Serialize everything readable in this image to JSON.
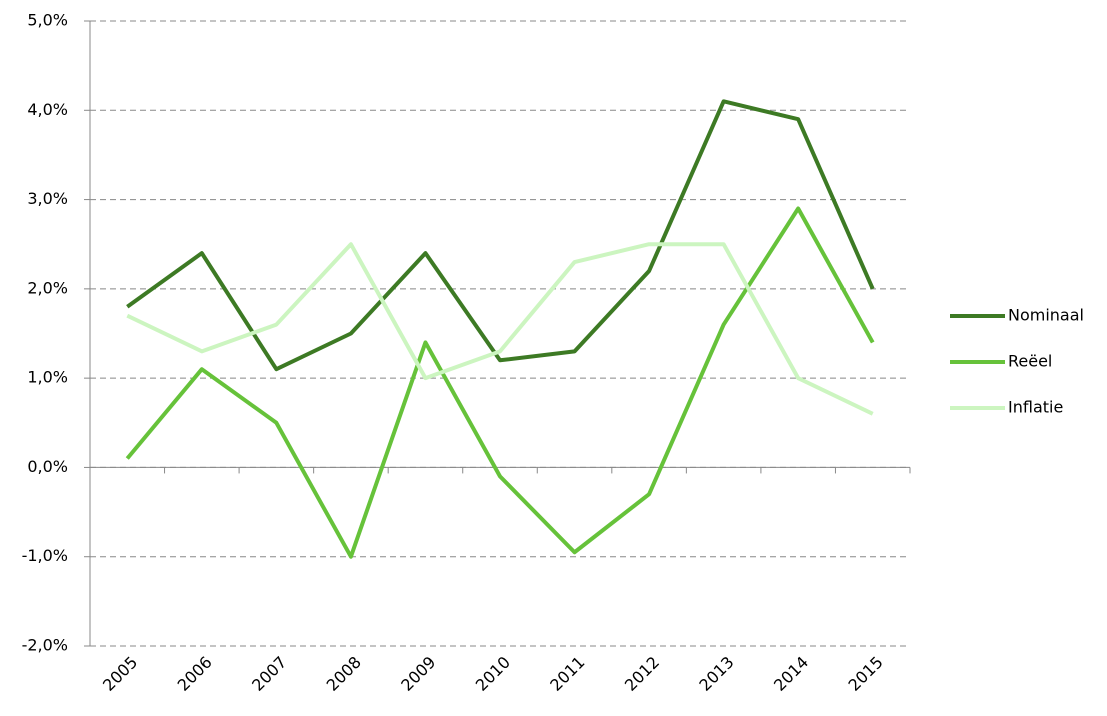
{
  "chart_data": {
    "type": "line",
    "categories": [
      "2005",
      "2006",
      "2007",
      "2008",
      "2009",
      "2010",
      "2011",
      "2012",
      "2013",
      "2014",
      "2015"
    ],
    "series": [
      {
        "name": "Nominaal",
        "color": "#3d7a24",
        "values": [
          1.8,
          2.4,
          1.1,
          1.5,
          2.4,
          1.2,
          1.3,
          2.2,
          4.1,
          3.9,
          2.0
        ]
      },
      {
        "name": "Reëel",
        "color": "#66c23a",
        "values": [
          0.1,
          1.1,
          0.5,
          -1.0,
          1.4,
          -0.1,
          -0.95,
          -0.3,
          1.6,
          2.9,
          1.4
        ]
      },
      {
        "name": "Inflatie",
        "color": "#ccf5c0",
        "values": [
          1.7,
          1.3,
          1.6,
          2.5,
          1.0,
          1.3,
          2.3,
          2.5,
          2.5,
          1.0,
          0.6
        ]
      }
    ],
    "ylim": [
      -2,
      5
    ],
    "yticks": [
      {
        "value": -2,
        "label": "-2,0%"
      },
      {
        "value": -1,
        "label": "-1,0%"
      },
      {
        "value": 0,
        "label": "0,0%"
      },
      {
        "value": 1,
        "label": "1,0%"
      },
      {
        "value": 2,
        "label": "2,0%"
      },
      {
        "value": 3,
        "label": "3,0%"
      },
      {
        "value": 4,
        "label": "4,0%"
      },
      {
        "value": 5,
        "label": "5,0%"
      }
    ],
    "grid": true,
    "legend": "right"
  }
}
